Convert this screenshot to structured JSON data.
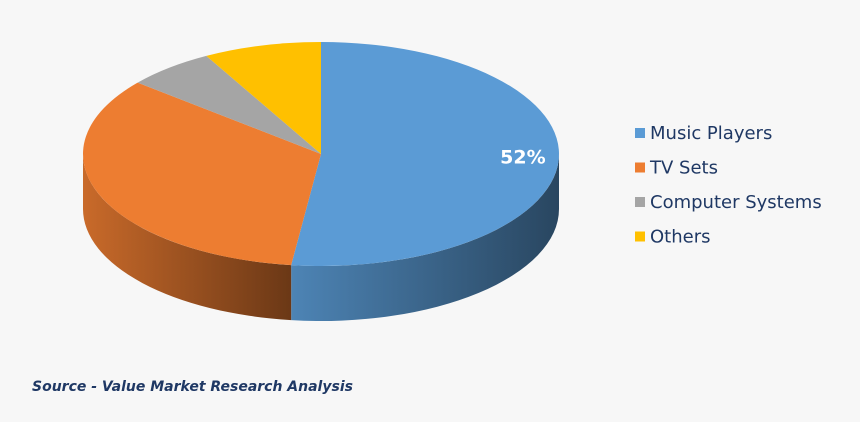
{
  "chart_data": {
    "type": "pie",
    "categories": [
      "Music Players",
      "TV Sets",
      "Computer Systems",
      "Others"
    ],
    "values": [
      52,
      34,
      6,
      8
    ],
    "value_labels": [
      "52%",
      null,
      null,
      null
    ],
    "colors": [
      "#5b9bd5",
      "#ed7d31",
      "#a5a5a5",
      "#ffc000"
    ],
    "legend": "right",
    "source": "Source - Value Market Research Analysis"
  }
}
